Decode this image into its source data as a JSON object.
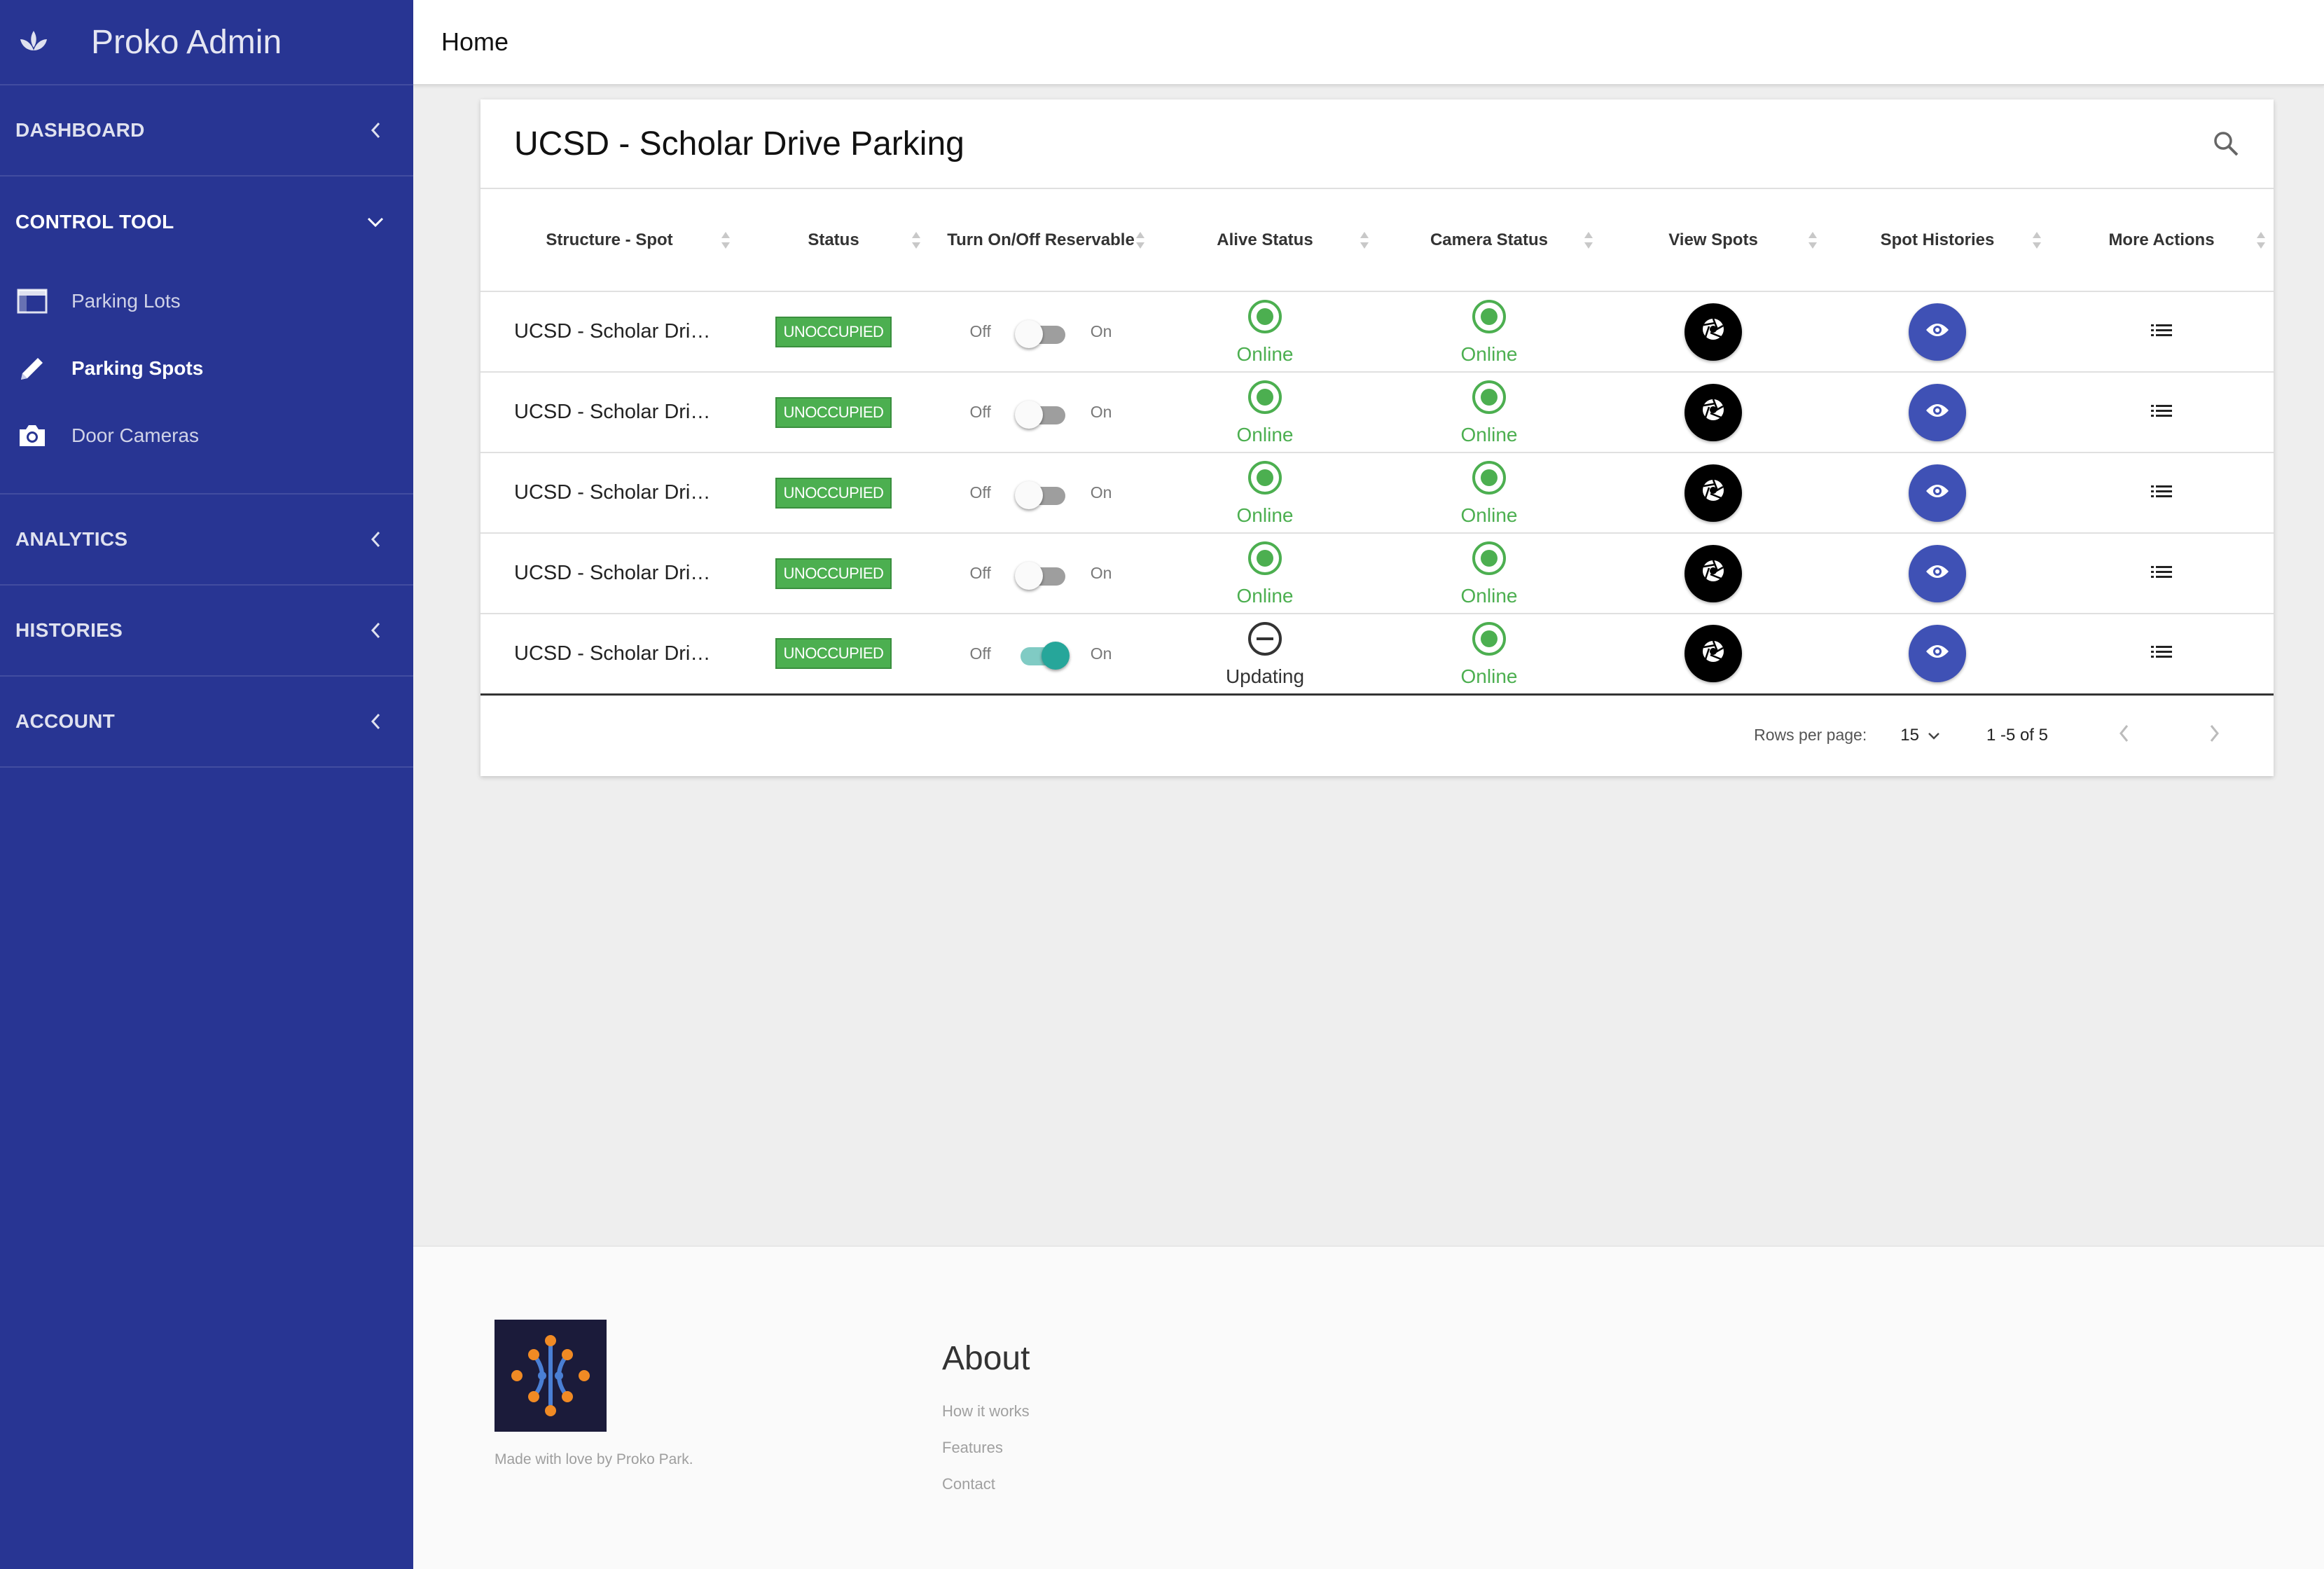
{
  "app": {
    "brand_title": "Proko Admin"
  },
  "sidebar": {
    "sections": [
      {
        "label": "DASHBOARD"
      },
      {
        "label": "CONTROL TOOL"
      },
      {
        "label": "ANALYTICS"
      },
      {
        "label": "HISTORIES"
      },
      {
        "label": "ACCOUNT"
      }
    ],
    "subitems": [
      {
        "label": "Parking Lots",
        "icon": "window-icon"
      },
      {
        "label": "Parking Spots",
        "icon": "pencil-icon"
      },
      {
        "label": "Door Cameras",
        "icon": "camera-icon"
      }
    ]
  },
  "topbar": {
    "title": "Home"
  },
  "card": {
    "title": "UCSD - Scholar Drive Parking",
    "columns": [
      "Structure - Spot",
      "Status",
      "Turn On/Off Reservable",
      "Alive Status",
      "Camera Status",
      "View Spots",
      "Spot Histories",
      "More Actions"
    ],
    "toggle_off_label": "Off",
    "toggle_on_label": "On",
    "rows": [
      {
        "spot": "UCSD - Scholar Dri…",
        "status": "UNOCCUPIED",
        "reservable": false,
        "alive": "Online",
        "camera": "Online"
      },
      {
        "spot": "UCSD - Scholar Dri…",
        "status": "UNOCCUPIED",
        "reservable": false,
        "alive": "Online",
        "camera": "Online"
      },
      {
        "spot": "UCSD - Scholar Dri…",
        "status": "UNOCCUPIED",
        "reservable": false,
        "alive": "Online",
        "camera": "Online"
      },
      {
        "spot": "UCSD - Scholar Dri…",
        "status": "UNOCCUPIED",
        "reservable": false,
        "alive": "Online",
        "camera": "Online"
      },
      {
        "spot": "UCSD - Scholar Dri…",
        "status": "UNOCCUPIED",
        "reservable": true,
        "alive": "Updating",
        "camera": "Online"
      }
    ],
    "pager": {
      "rows_per_page_label": "Rows per page:",
      "rows_per_page": "15",
      "range": "1 -5 of 5"
    }
  },
  "colors": {
    "sidebar": "#283593",
    "online": "#4caf50",
    "spot_history_button": "#3f51b5",
    "toggle_on": "#26a69a"
  },
  "footer": {
    "made_with": "Made with love by Proko Park.",
    "about_title": "About",
    "links": [
      "How it works",
      "Features",
      "Contact"
    ]
  }
}
